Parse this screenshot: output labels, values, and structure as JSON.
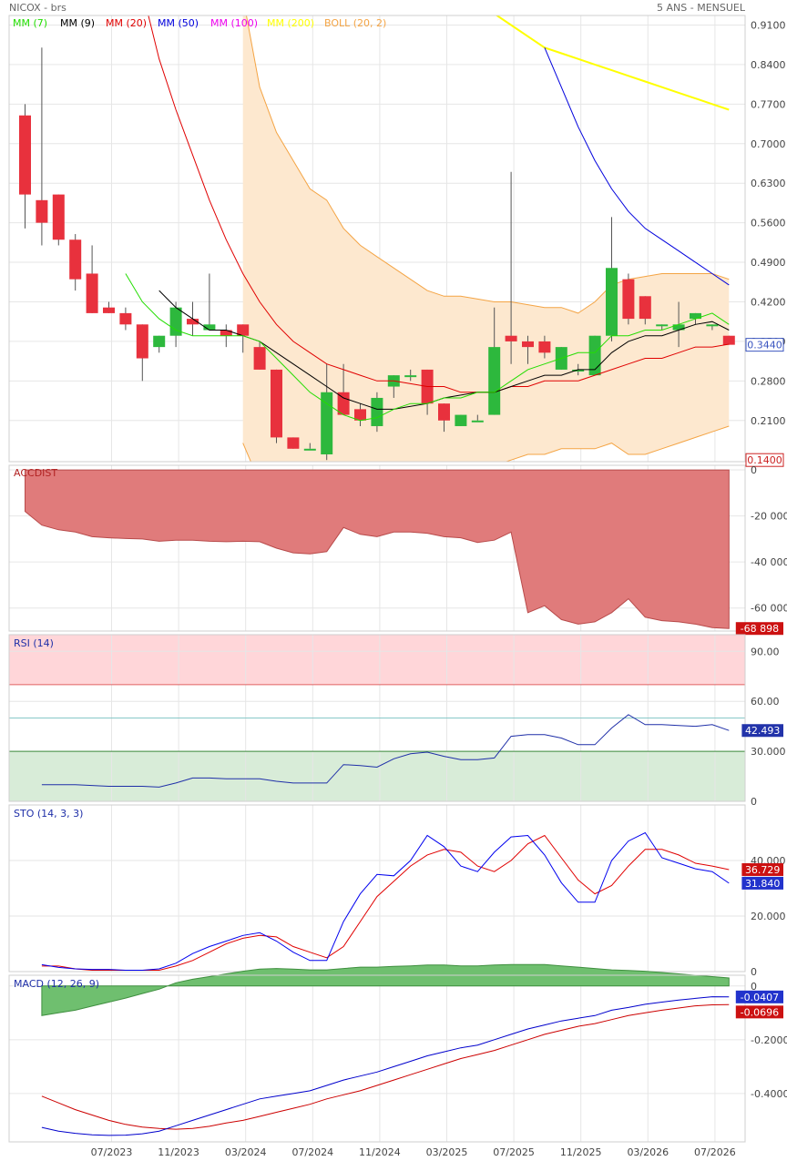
{
  "header": {
    "symbol": "NICOX - brs",
    "period": "5 ANS - MENSUEL"
  },
  "colors": {
    "up": "#2db83d",
    "down": "#e8313d",
    "bollFill": "#fde8cf",
    "bollLine": "#f4a444",
    "ma7": "#22dd00",
    "ma9": "#000000",
    "ma20": "#e00000",
    "ma50": "#0000dd",
    "ma100": "#ee00ee",
    "ma200": "#ffff00",
    "grid": "#e6e6e6",
    "accdist": "#e07b7b",
    "rsiLine": "#1f2fa8",
    "rsiHigh": "#ffd6d9",
    "rsiLow": "#d8ecd8",
    "stoK": "#0000ee",
    "stoD": "#e00000",
    "macd": "#0000cc",
    "signal": "#cc0000",
    "hist": "#6fbf6f"
  },
  "legend": {
    "items": [
      {
        "label": "MM (7)",
        "color": "#22dd00"
      },
      {
        "label": "MM (9)",
        "color": "#000000"
      },
      {
        "label": "MM (20)",
        "color": "#e00000"
      },
      {
        "label": "MM (50)",
        "color": "#0000dd"
      },
      {
        "label": "MM (100)",
        "color": "#ee00ee"
      },
      {
        "label": "MM (200)",
        "color": "#ffff00"
      },
      {
        "label": "BOLL (20, 2)",
        "color": "#f4a444"
      }
    ]
  },
  "chart_data": [
    {
      "type": "candlestick",
      "title": "NICOX - brs",
      "x_labels": [
        "07/2023",
        "11/2023",
        "03/2024",
        "07/2024",
        "11/2024",
        "03/2025",
        "07/2025",
        "11/2025",
        "03/2026",
        "07/2026"
      ],
      "x_label_months": [
        5,
        9,
        13,
        17,
        21,
        25,
        29,
        33,
        37,
        41
      ],
      "y_ticks": [
        0.91,
        0.84,
        0.77,
        0.7,
        0.63,
        0.56,
        0.49,
        0.42,
        0.35,
        0.28,
        0.21
      ],
      "ylim": [
        0.1371,
        0.9269
      ],
      "last_price": "0.3440",
      "low_price": "0.1400",
      "ohlc": [
        [
          0.75,
          0.77,
          0.55,
          0.61
        ],
        [
          0.6,
          0.87,
          0.52,
          0.56
        ],
        [
          0.61,
          0.61,
          0.52,
          0.53
        ],
        [
          0.53,
          0.54,
          0.44,
          0.46
        ],
        [
          0.47,
          0.52,
          0.4,
          0.4
        ],
        [
          0.41,
          0.42,
          0.4,
          0.4
        ],
        [
          0.4,
          0.41,
          0.37,
          0.38
        ],
        [
          0.38,
          0.38,
          0.28,
          0.32
        ],
        [
          0.34,
          0.36,
          0.33,
          0.36
        ],
        [
          0.36,
          0.42,
          0.34,
          0.41
        ],
        [
          0.39,
          0.42,
          0.36,
          0.38
        ],
        [
          0.37,
          0.47,
          0.37,
          0.38
        ],
        [
          0.37,
          0.38,
          0.34,
          0.36
        ],
        [
          0.38,
          0.38,
          0.33,
          0.36
        ],
        [
          0.34,
          0.35,
          0.3,
          0.3
        ],
        [
          0.3,
          0.3,
          0.17,
          0.18
        ],
        [
          0.18,
          0.18,
          0.16,
          0.16
        ],
        [
          0.16,
          0.17,
          0.16,
          0.16
        ],
        [
          0.15,
          0.31,
          0.14,
          0.26
        ],
        [
          0.26,
          0.31,
          0.22,
          0.22
        ],
        [
          0.23,
          0.24,
          0.2,
          0.21
        ],
        [
          0.2,
          0.26,
          0.19,
          0.25
        ],
        [
          0.27,
          0.29,
          0.25,
          0.29
        ],
        [
          0.29,
          0.3,
          0.28,
          0.29
        ],
        [
          0.3,
          0.3,
          0.22,
          0.24
        ],
        [
          0.24,
          0.24,
          0.19,
          0.21
        ],
        [
          0.2,
          0.22,
          0.2,
          0.22
        ],
        [
          0.21,
          0.22,
          0.21,
          0.21
        ],
        [
          0.22,
          0.41,
          0.22,
          0.34
        ],
        [
          0.36,
          0.65,
          0.31,
          0.35
        ],
        [
          0.35,
          0.36,
          0.31,
          0.34
        ],
        [
          0.35,
          0.36,
          0.32,
          0.33
        ],
        [
          0.3,
          0.34,
          0.3,
          0.34
        ],
        [
          0.3,
          0.31,
          0.29,
          0.3
        ],
        [
          0.29,
          0.36,
          0.29,
          0.36
        ],
        [
          0.36,
          0.57,
          0.35,
          0.48
        ],
        [
          0.46,
          0.47,
          0.38,
          0.39
        ],
        [
          0.43,
          0.43,
          0.38,
          0.39
        ],
        [
          0.38,
          0.38,
          0.37,
          0.38
        ],
        [
          0.37,
          0.42,
          0.34,
          0.38
        ],
        [
          0.39,
          0.4,
          0.38,
          0.4
        ],
        [
          0.38,
          0.38,
          0.37,
          0.38
        ],
        [
          0.36,
          0.36,
          0.344,
          0.344
        ]
      ],
      "ma7": [
        null,
        null,
        null,
        null,
        null,
        null,
        0.47,
        0.42,
        0.39,
        0.37,
        0.36,
        0.36,
        0.36,
        0.36,
        0.35,
        0.32,
        0.29,
        0.26,
        0.24,
        0.22,
        0.21,
        0.215,
        0.23,
        0.24,
        0.24,
        0.25,
        0.25,
        0.26,
        0.26,
        0.28,
        0.3,
        0.31,
        0.32,
        0.33,
        0.33,
        0.36,
        0.36,
        0.37,
        0.37,
        0.38,
        0.39,
        0.4,
        0.38
      ],
      "ma9": [
        null,
        null,
        null,
        null,
        null,
        null,
        null,
        null,
        0.44,
        0.41,
        0.39,
        0.37,
        0.37,
        0.36,
        0.35,
        0.33,
        0.31,
        0.29,
        0.27,
        0.25,
        0.24,
        0.23,
        0.23,
        0.235,
        0.24,
        0.25,
        0.255,
        0.26,
        0.26,
        0.27,
        0.28,
        0.29,
        0.29,
        0.3,
        0.3,
        0.33,
        0.35,
        0.36,
        0.36,
        0.37,
        0.38,
        0.385,
        0.37
      ],
      "ma20": [
        null,
        null,
        null,
        null,
        null,
        null,
        null,
        0.97,
        0.85,
        0.76,
        0.68,
        0.6,
        0.53,
        0.47,
        0.42,
        0.38,
        0.35,
        0.33,
        0.31,
        0.3,
        0.29,
        0.28,
        0.28,
        0.275,
        0.27,
        0.27,
        0.26,
        0.26,
        0.26,
        0.27,
        0.27,
        0.28,
        0.28,
        0.28,
        0.29,
        0.3,
        0.31,
        0.32,
        0.32,
        0.33,
        0.34,
        0.34,
        0.345
      ],
      "ma50": [
        null,
        null,
        null,
        null,
        null,
        null,
        null,
        null,
        null,
        null,
        null,
        null,
        null,
        null,
        null,
        null,
        null,
        null,
        null,
        null,
        null,
        null,
        null,
        null,
        null,
        null,
        null,
        null,
        null,
        null,
        null,
        0.87,
        0.8,
        0.73,
        0.67,
        0.62,
        0.58,
        0.55,
        0.53,
        0.51,
        0.49,
        0.47,
        0.45
      ],
      "ma200": [
        null,
        null,
        null,
        null,
        null,
        null,
        null,
        null,
        null,
        null,
        null,
        null,
        null,
        null,
        null,
        null,
        null,
        null,
        null,
        null,
        null,
        null,
        null,
        null,
        null,
        null,
        null,
        0.95,
        0.93,
        0.91,
        0.89,
        0.87,
        0.86,
        0.85,
        0.84,
        0.83,
        0.82,
        0.81,
        0.8,
        0.79,
        0.78,
        0.77,
        0.76
      ],
      "boll_upper": [
        null,
        null,
        null,
        null,
        null,
        null,
        null,
        null,
        null,
        null,
        null,
        null,
        null,
        0.96,
        0.8,
        0.72,
        0.67,
        0.62,
        0.6,
        0.55,
        0.52,
        0.5,
        0.48,
        0.46,
        0.44,
        0.43,
        0.43,
        0.425,
        0.42,
        0.42,
        0.415,
        0.41,
        0.41,
        0.4,
        0.42,
        0.45,
        0.46,
        0.465,
        0.47,
        0.47,
        0.47,
        0.47,
        0.46
      ],
      "boll_lower": [
        null,
        null,
        null,
        null,
        null,
        null,
        null,
        null,
        null,
        null,
        null,
        null,
        null,
        0.17,
        0.1,
        0.07,
        0.05,
        0.05,
        0.06,
        0.06,
        0.07,
        0.08,
        0.09,
        0.1,
        0.11,
        0.11,
        0.12,
        0.13,
        0.13,
        0.14,
        0.15,
        0.15,
        0.16,
        0.16,
        0.16,
        0.17,
        0.15,
        0.15,
        0.16,
        0.17,
        0.18,
        0.19,
        0.2
      ]
    },
    {
      "type": "area",
      "title": "ACCDIST",
      "y_ticks": [
        0,
        -20000,
        -40000,
        -60000
      ],
      "y_tick_labels": [
        "0",
        "-20 000",
        "-40 000",
        "-60 000"
      ],
      "ylim": [
        -70000,
        2000
      ],
      "last_label": "-68 898",
      "values": [
        -18000,
        -24000,
        -26000,
        -27000,
        -29000,
        -29500,
        -29800,
        -30000,
        -31000,
        -30500,
        -30500,
        -31000,
        -31200,
        -31000,
        -31200,
        -34000,
        -36000,
        -36500,
        -35500,
        -25000,
        -28000,
        -29000,
        -27000,
        -27000,
        -27500,
        -29000,
        -29500,
        -31500,
        -30500,
        -27000,
        -62000,
        -59000,
        -65000,
        -67000,
        -66000,
        -62000,
        -56000,
        -64000,
        -65500,
        -66000,
        -67000,
        -68500,
        -68898
      ]
    },
    {
      "type": "line",
      "title": "RSI (14)",
      "y_ticks": [
        90,
        60,
        30,
        0
      ],
      "y_tick_labels": [
        "90.00",
        "60.00",
        "30.000",
        "0"
      ],
      "ylim": [
        0,
        100
      ],
      "overbought": 70,
      "oversold": 30,
      "ref_line": 50,
      "last_label": "42.493",
      "values": [
        null,
        10,
        10,
        10,
        9.5,
        9,
        9,
        9,
        8.5,
        11,
        14,
        14,
        13.5,
        13.5,
        13.5,
        12,
        11,
        11,
        11,
        22,
        21.5,
        20.5,
        25.5,
        28.5,
        29.5,
        27,
        25,
        25,
        26,
        39,
        40,
        40,
        38,
        34,
        34,
        44,
        52,
        46,
        46,
        45.5,
        45,
        46,
        42.493
      ]
    },
    {
      "type": "line",
      "title": "STO (14, 3, 3)",
      "y_ticks": [
        40,
        20,
        0
      ],
      "y_tick_labels": [
        "40.000",
        "20.000",
        "0"
      ],
      "ylim": [
        0,
        60
      ],
      "last_labels": [
        "36.729",
        "31.840"
      ],
      "k_values": [
        null,
        2.5,
        1.5,
        1,
        0.8,
        0.8,
        0.5,
        0.5,
        1,
        3,
        6.5,
        9,
        11,
        13,
        14,
        11,
        7,
        4,
        4,
        18,
        28,
        35,
        34.5,
        40,
        49,
        45,
        38,
        36,
        43,
        48.5,
        49,
        42,
        32,
        25,
        25,
        40,
        47,
        50,
        41,
        39,
        37,
        36,
        31.84
      ],
      "d_values": [
        null,
        2,
        2,
        1,
        0.5,
        0.5,
        0.5,
        0.5,
        0.5,
        2,
        4,
        7,
        10,
        12,
        13,
        12.5,
        9,
        7,
        5,
        9,
        18,
        27,
        32.5,
        38,
        42,
        44,
        43,
        38,
        36,
        40,
        46,
        49,
        41,
        33,
        28,
        31,
        38,
        44,
        44,
        42,
        39,
        38,
        36.73
      ]
    },
    {
      "type": "line",
      "title": "MACD (12, 26, 9)",
      "y_ticks": [
        0,
        -0.2,
        -0.4
      ],
      "y_tick_labels": [
        "0",
        "-0.2000",
        "-0.4000"
      ],
      "ylim": [
        -0.58,
        0.04
      ],
      "last_labels": [
        "-0.0407",
        "-0.0696"
      ],
      "macd": [
        null,
        -0.526,
        -0.54,
        -0.548,
        -0.554,
        -0.556,
        -0.555,
        -0.55,
        -0.54,
        -0.52,
        -0.5,
        -0.48,
        -0.46,
        -0.44,
        -0.42,
        -0.41,
        -0.4,
        -0.39,
        -0.37,
        -0.35,
        -0.335,
        -0.32,
        -0.3,
        -0.28,
        -0.26,
        -0.245,
        -0.23,
        -0.22,
        -0.2,
        -0.18,
        -0.16,
        -0.145,
        -0.13,
        -0.12,
        -0.11,
        -0.09,
        -0.08,
        -0.068,
        -0.06,
        -0.052,
        -0.046,
        -0.04,
        -0.0407
      ],
      "signal": [
        null,
        -0.41,
        -0.435,
        -0.46,
        -0.48,
        -0.5,
        -0.515,
        -0.525,
        -0.53,
        -0.533,
        -0.53,
        -0.522,
        -0.51,
        -0.5,
        -0.485,
        -0.47,
        -0.455,
        -0.44,
        -0.42,
        -0.405,
        -0.39,
        -0.37,
        -0.35,
        -0.33,
        -0.31,
        -0.29,
        -0.27,
        -0.255,
        -0.24,
        -0.22,
        -0.2,
        -0.18,
        -0.165,
        -0.15,
        -0.14,
        -0.125,
        -0.11,
        -0.1,
        -0.09,
        -0.082,
        -0.074,
        -0.07,
        -0.0696
      ],
      "hist": [
        null,
        -0.11,
        -0.1,
        -0.09,
        -0.075,
        -0.06,
        -0.045,
        -0.028,
        -0.012,
        0.012,
        0.025,
        0.035,
        0.045,
        0.055,
        0.063,
        0.065,
        0.063,
        0.06,
        0.06,
        0.065,
        0.07,
        0.07,
        0.073,
        0.075,
        0.078,
        0.078,
        0.075,
        0.075,
        0.078,
        0.08,
        0.08,
        0.08,
        0.075,
        0.07,
        0.065,
        0.06,
        0.058,
        0.055,
        0.05,
        0.045,
        0.04,
        0.035,
        0.03
      ]
    }
  ]
}
